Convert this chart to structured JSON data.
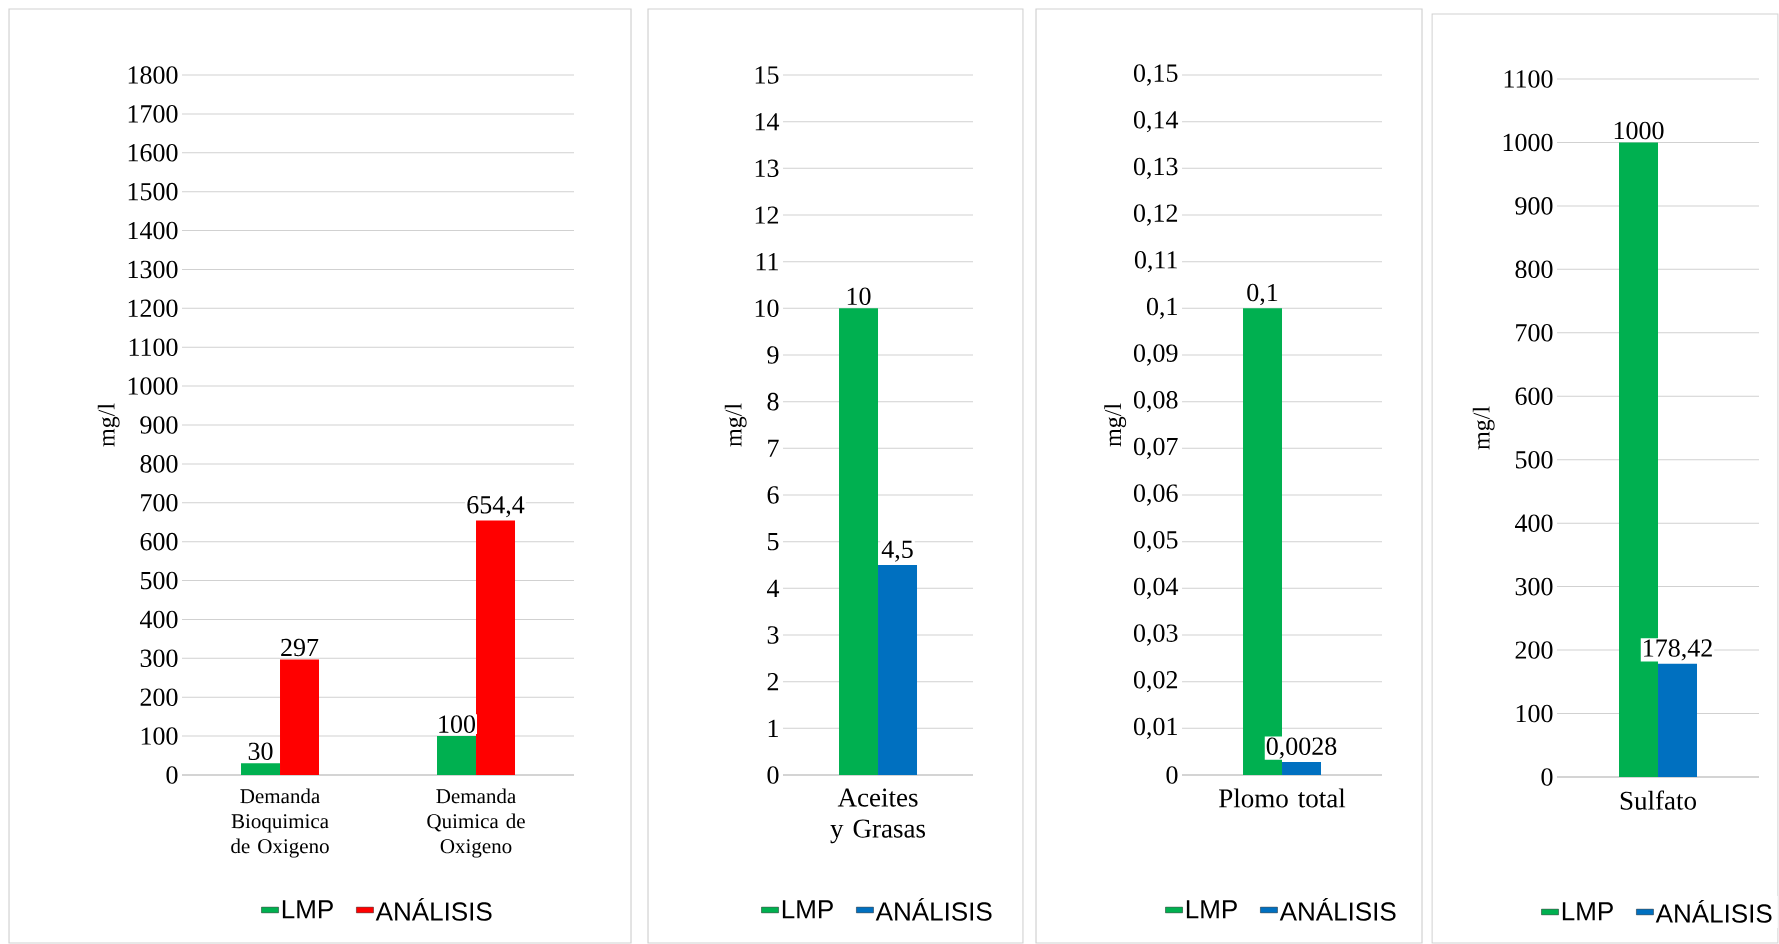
{
  "chart_data": [
    {
      "type": "bar",
      "categories": [
        "Demanda Bioquimica de Oxigeno",
        "Demanda Quimica de Oxigeno"
      ],
      "ylabel": "mg/l",
      "series": [
        {
          "name": "LMP",
          "color": "#00b050",
          "values": [
            30,
            100
          ],
          "value_labels": [
            "30",
            "100"
          ]
        },
        {
          "name": "ANÁLISIS",
          "color": "#ff0000",
          "values": [
            297,
            654.4
          ],
          "value_labels": [
            "297",
            "654,4"
          ]
        }
      ],
      "ylim": [
        0,
        1800
      ],
      "yticks": [
        0,
        100,
        200,
        300,
        400,
        500,
        600,
        700,
        800,
        900,
        1000,
        1100,
        1200,
        1300,
        1400,
        1500,
        1600,
        1700,
        1800
      ],
      "grid": "y",
      "legend": "bottom"
    },
    {
      "type": "bar",
      "categories": [
        "Aceites y Grasas"
      ],
      "ylabel": "mg/l",
      "series": [
        {
          "name": "LMP",
          "color": "#00b050",
          "values": [
            10
          ],
          "value_labels": [
            "10"
          ]
        },
        {
          "name": "ANÁLISIS",
          "color": "#0070c0",
          "values": [
            4.5
          ],
          "value_labels": [
            "4,5"
          ]
        }
      ],
      "ylim": [
        0,
        15
      ],
      "yticks": [
        0,
        1,
        2,
        3,
        4,
        5,
        6,
        7,
        8,
        9,
        10,
        11,
        12,
        13,
        14,
        15
      ],
      "grid": "y",
      "legend": "bottom"
    },
    {
      "type": "bar",
      "categories": [
        "Plomo total"
      ],
      "ylabel": "mg/l",
      "series": [
        {
          "name": "LMP",
          "color": "#00b050",
          "values": [
            0.1
          ],
          "value_labels": [
            "0,1"
          ]
        },
        {
          "name": "ANÁLISIS",
          "color": "#0070c0",
          "values": [
            0.0028
          ],
          "value_labels": [
            "0,0028"
          ]
        }
      ],
      "ylim": [
        0,
        0.15
      ],
      "yticks": [
        0,
        {
          "value": 0.01,
          "label": "0,01"
        },
        {
          "value": 0.02,
          "label": "0,02"
        },
        {
          "value": 0.03,
          "label": "0,03"
        },
        {
          "value": 0.04,
          "label": "0,04"
        },
        {
          "value": 0.05,
          "label": "0,05"
        },
        {
          "value": 0.06,
          "label": "0,06"
        },
        {
          "value": 0.07,
          "label": "0,07"
        },
        {
          "value": 0.08,
          "label": "0,08"
        },
        {
          "value": 0.09,
          "label": "0,09"
        },
        {
          "value": 0.1,
          "label": "0,1"
        },
        {
          "value": 0.11,
          "label": "0,11"
        },
        {
          "value": 0.12,
          "label": "0,12"
        },
        {
          "value": 0.13,
          "label": "0,13"
        },
        {
          "value": 0.14,
          "label": "0,14"
        },
        {
          "value": 0.15,
          "label": "0,15"
        }
      ],
      "grid": "y",
      "legend": "bottom"
    },
    {
      "type": "bar",
      "categories": [
        "Sulfato"
      ],
      "ylabel": "mg/l",
      "series": [
        {
          "name": "LMP",
          "color": "#00b050",
          "values": [
            1000
          ],
          "value_labels": [
            "1000"
          ]
        },
        {
          "name": "ANÁLISIS",
          "color": "#0070c0",
          "values": [
            178.42
          ],
          "value_labels": [
            "178,42"
          ]
        }
      ],
      "ylim": [
        0,
        1100
      ],
      "yticks": [
        0,
        100,
        200,
        300,
        400,
        500,
        600,
        700,
        800,
        900,
        1000,
        1100
      ],
      "grid": "y",
      "legend": "bottom"
    }
  ]
}
